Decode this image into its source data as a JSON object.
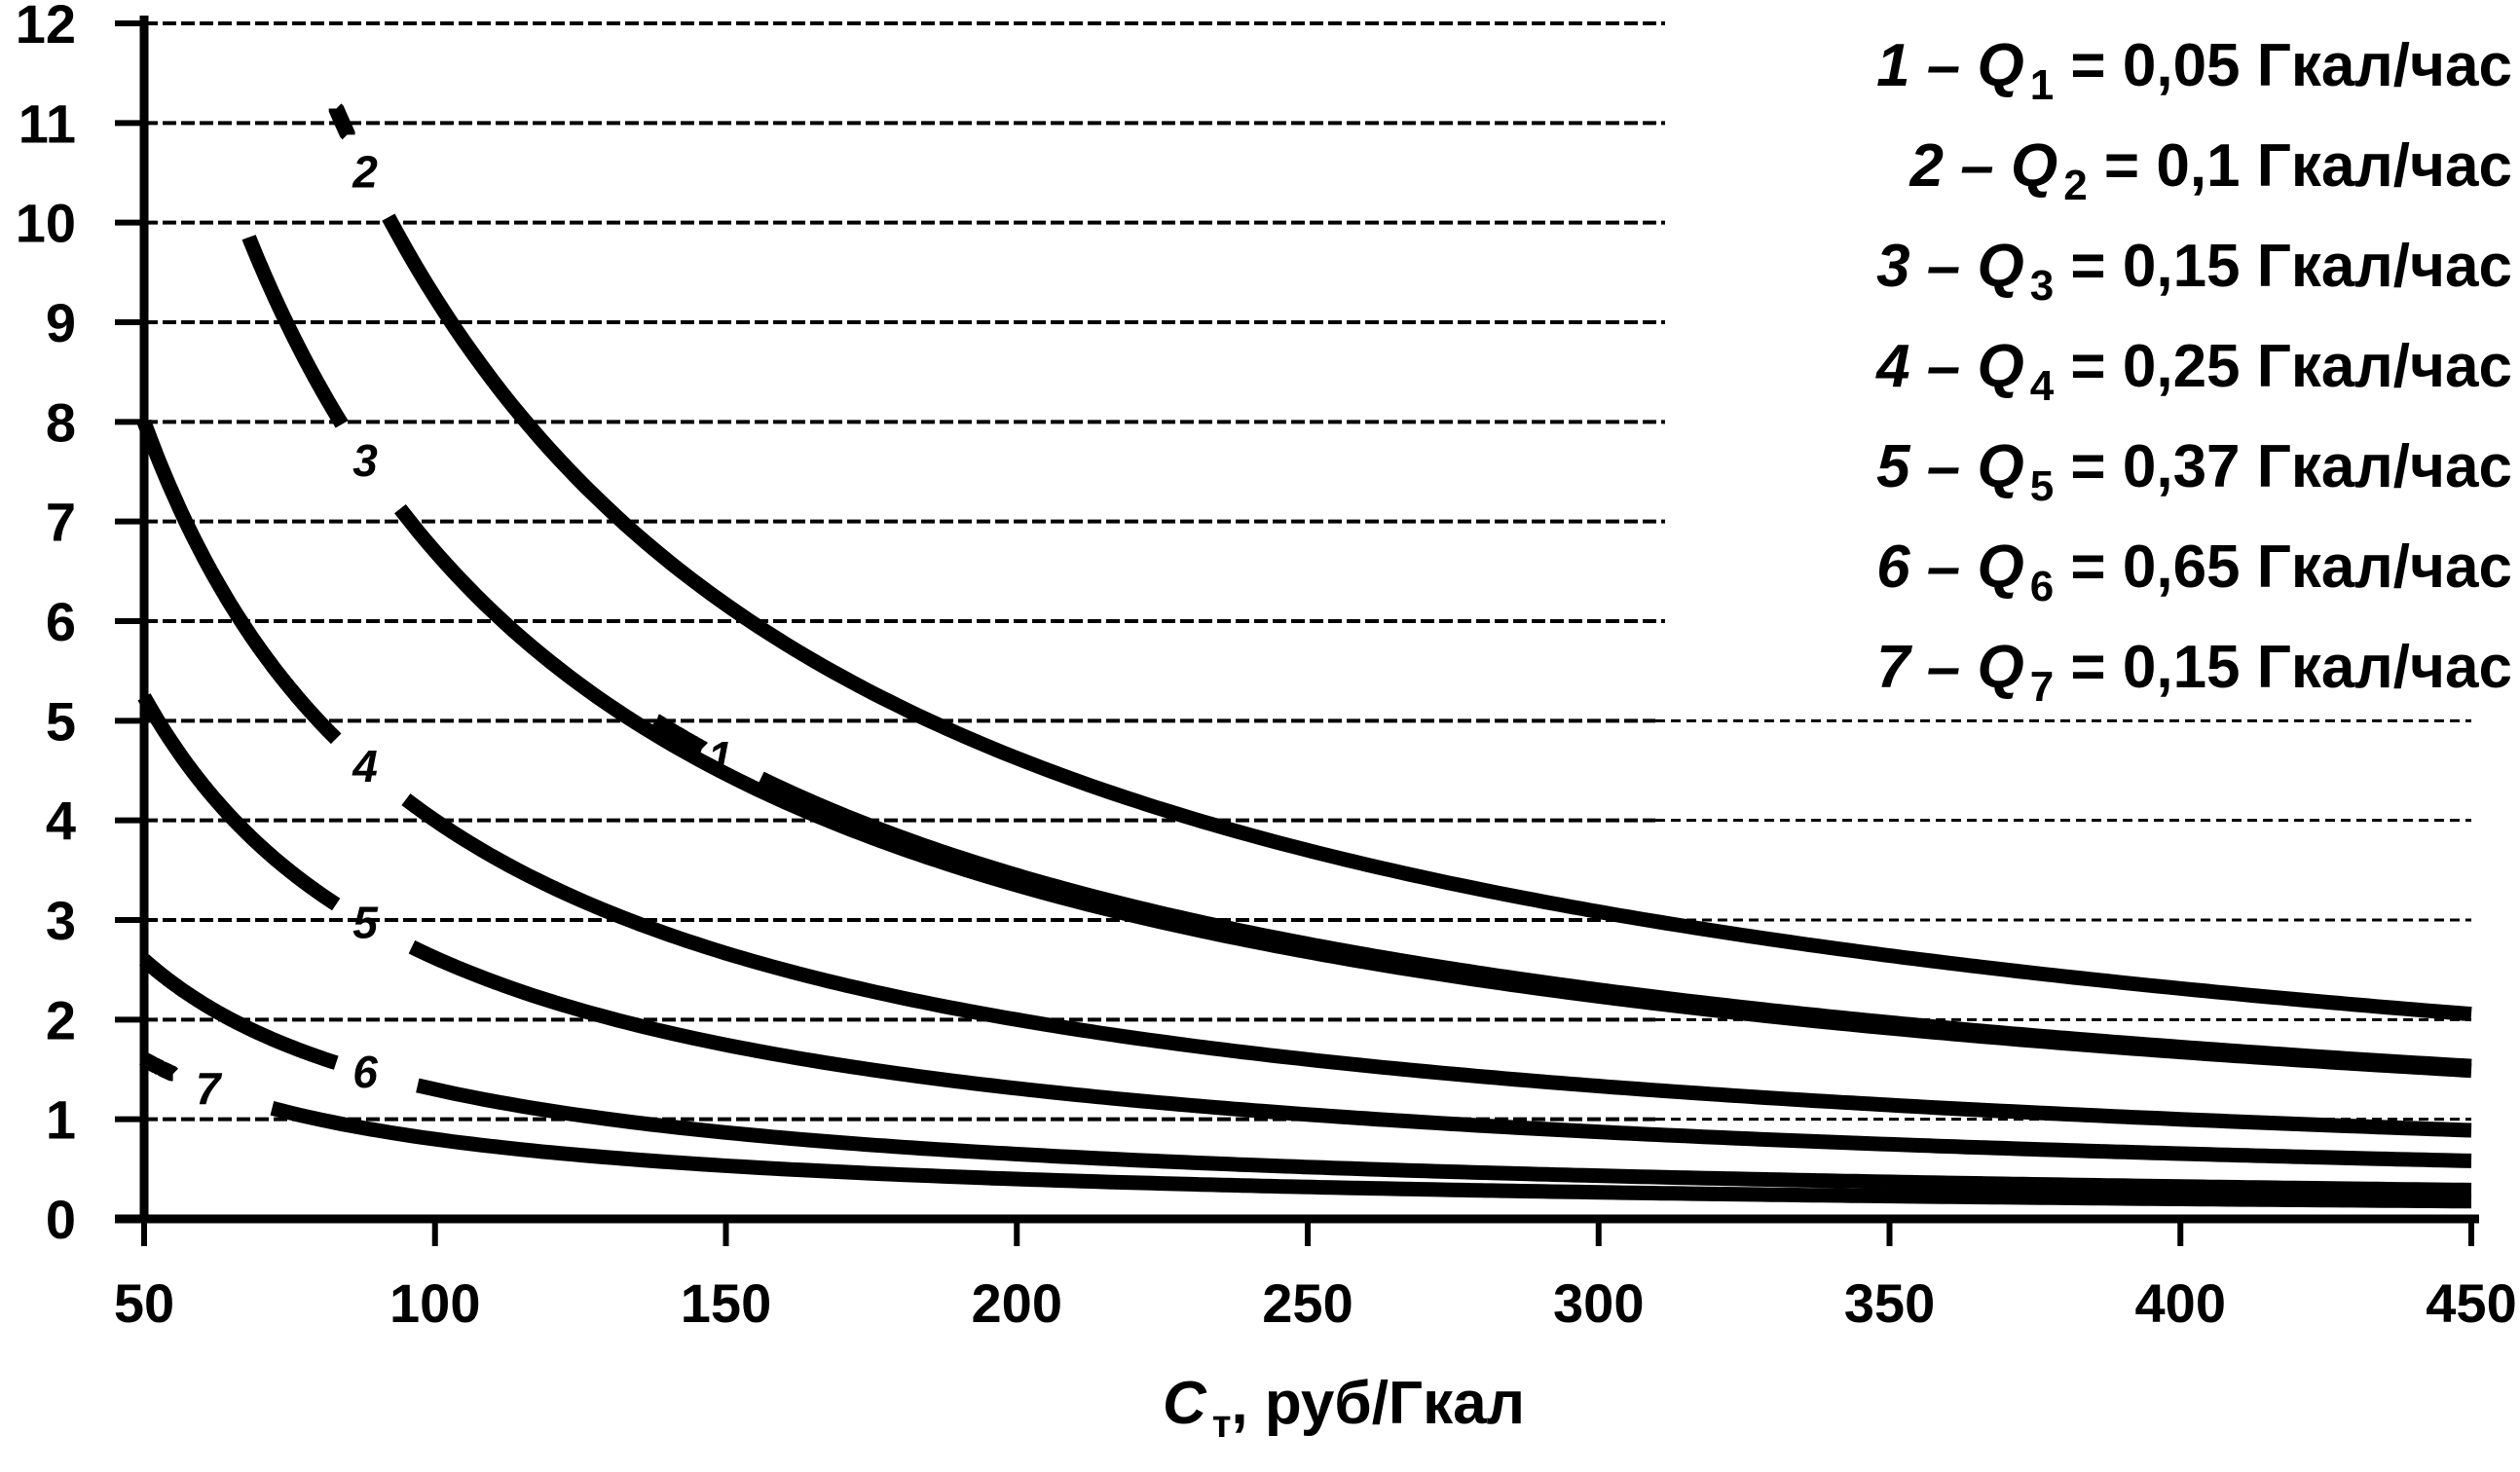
{
  "chart_data": {
    "type": "line",
    "xlabel": {
      "symbol": "C",
      "subscript": "т",
      "suffix": ", руб/Гкал"
    },
    "ylabel": "",
    "xlim": [
      50,
      450
    ],
    "ylim": [
      0,
      12
    ],
    "x_ticks": [
      "50",
      "100",
      "150",
      "200",
      "250",
      "300",
      "350",
      "400",
      "450"
    ],
    "y_ticks": [
      "0",
      "1",
      "2",
      "3",
      "4",
      "5",
      "6",
      "7",
      "8",
      "9",
      "10",
      "11",
      "12"
    ],
    "grid": "horizontal dashed",
    "legend_position": "top-right",
    "legend": [
      {
        "num": "1",
        "sub": "1",
        "value": "0,05 Гкал/час"
      },
      {
        "num": "2",
        "sub": "2",
        "value": "0,1 Гкал/час"
      },
      {
        "num": "3",
        "sub": "3",
        "value": "0,15 Гкал/час"
      },
      {
        "num": "4",
        "sub": "4",
        "value": "0,25 Гкал/час"
      },
      {
        "num": "5",
        "sub": "5",
        "value": "0,37 Гкал/час"
      },
      {
        "num": "6",
        "sub": "6",
        "value": "0,65 Гкал/час"
      },
      {
        "num": "7",
        "sub": "7",
        "value": "0,15 Гкал/час"
      }
    ],
    "series": [
      {
        "name": "1",
        "k": 690,
        "x_start": 138,
        "label_x": 149,
        "gap": [
          146,
          156
        ]
      },
      {
        "name": "2",
        "k": 925,
        "x_start": 83,
        "label_x": 88,
        "gap": [
          85,
          92
        ]
      },
      {
        "name": "3",
        "k": 670,
        "x_start": 68,
        "label_x": 88,
        "gap": [
          84,
          94
        ]
      },
      {
        "name": "4",
        "k": 400,
        "x_start": 50,
        "label_x": 88,
        "gap": [
          83,
          95
        ]
      },
      {
        "name": "5",
        "k": 262,
        "x_start": 50,
        "label_x": 88,
        "gap": [
          83,
          96
        ]
      },
      {
        "name": "6",
        "k": 130,
        "x_start": 50,
        "label_x": 88,
        "gap": [
          83,
          97
        ]
      },
      {
        "name": "7",
        "k": 80,
        "x_start": 50,
        "label_x": 61,
        "gap": [
          55,
          72
        ]
      }
    ]
  }
}
